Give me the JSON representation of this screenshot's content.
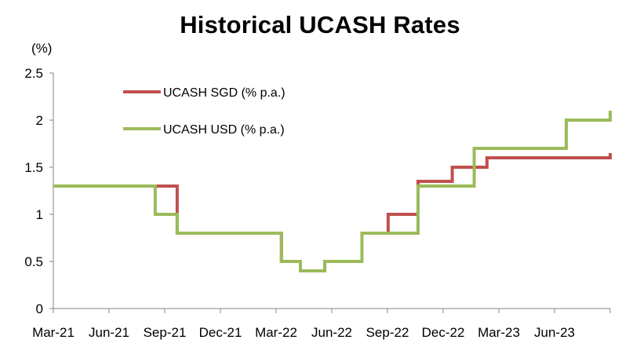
{
  "chart_data": {
    "type": "line",
    "title": "Historical UCASH Rates",
    "ylabel": "(%)",
    "xlabel": "",
    "ylim": [
      0,
      2.5
    ],
    "yticks": [
      0,
      0.5,
      1,
      1.5,
      2,
      2.5
    ],
    "ytick_labels": [
      "0",
      "0.5",
      "1",
      "1.5",
      "2",
      "2.5"
    ],
    "xtick_labels": [
      "Mar-21",
      "Jun-21",
      "Sep-21",
      "Dec-21",
      "Mar-22",
      "Jun-22",
      "Sep-22",
      "Dec-22",
      "Mar-23",
      "Jun-23"
    ],
    "xlim": [
      "2021-03-01",
      "2023-08-31"
    ],
    "grid": false,
    "legend": "top-left",
    "series": [
      {
        "name": "UCASH SGD (% p.a.)",
        "color": "#c0504d",
        "step": true,
        "x": [
          "2021-03-01",
          "2021-09-20",
          "2022-03-10",
          "2022-04-10",
          "2022-05-20",
          "2022-07-20",
          "2022-09-01",
          "2022-10-20",
          "2022-12-15",
          "2023-02-10",
          "2023-08-26",
          "2023-08-31"
        ],
        "values": [
          1.3,
          0.8,
          0.5,
          0.4,
          0.5,
          0.8,
          1.0,
          1.35,
          1.5,
          1.6,
          1.6,
          1.65
        ]
      },
      {
        "name": "UCASH USD (% p.a.)",
        "color": "#9bbb59",
        "step": true,
        "x": [
          "2021-03-01",
          "2021-08-15",
          "2021-09-20",
          "2022-03-10",
          "2022-04-10",
          "2022-05-20",
          "2022-07-20",
          "2022-10-20",
          "2023-01-20",
          "2023-06-20",
          "2023-08-26",
          "2023-08-31"
        ],
        "values": [
          1.3,
          1.0,
          0.8,
          0.5,
          0.4,
          0.5,
          0.8,
          1.3,
          1.7,
          2.0,
          2.0,
          2.1
        ]
      }
    ]
  }
}
